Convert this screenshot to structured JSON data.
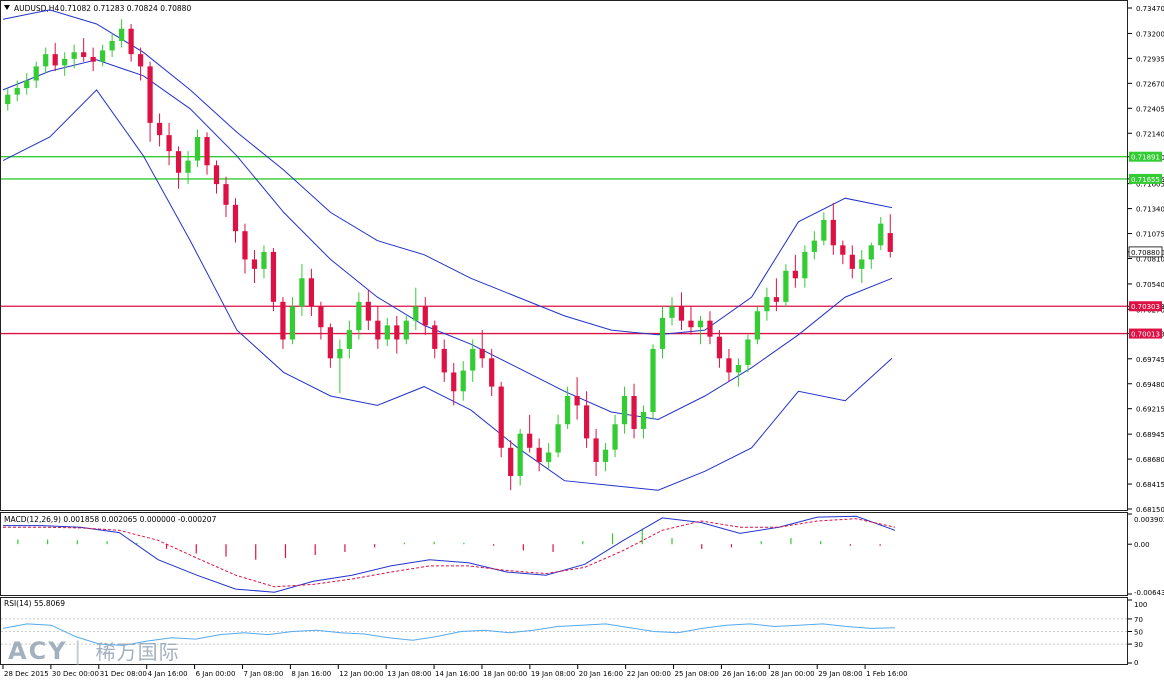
{
  "window": {
    "symbol_header": "AUDUSD,H4",
    "ohlc_header": "0.71082 0.71283 0.70824 0.70880",
    "macd_header": "MACD(12,26,9) 0.001858 0.002065 0.000000 -0.000207",
    "rsi_header": "RSI(14) 55.8069"
  },
  "watermark": {
    "brand": "ACY",
    "cn": "稀万国际",
    "separator": "|"
  },
  "colors": {
    "bull": "#33cc33",
    "bear": "#dd1144",
    "bollinger": "#2233cc",
    "support_lines": "#dd1144",
    "resistance_lines": "#33cc33",
    "macd_line": "#2233cc",
    "macd_signal": "#dd1144",
    "rsi_line": "#55aaee",
    "price_box_green": "#33cc33",
    "price_box_red": "#dd1144",
    "price_box_current": "#ffffff"
  },
  "price_axis": {
    "ticks": [
      "0.73470",
      "0.73200",
      "0.72935",
      "0.72670",
      "0.72405",
      "0.72140",
      "0.71890",
      "0.71655",
      "0.71605",
      "0.71340",
      "0.71075",
      "0.70880",
      "0.70810",
      "0.70540",
      "0.70303",
      "0.70270",
      "0.70013",
      "0.69745",
      "0.69480",
      "0.69215",
      "0.68945",
      "0.68680",
      "0.68415",
      "0.68150"
    ],
    "levels": [
      {
        "price": 0.71891,
        "label": "0.71891",
        "kind": "resistance"
      },
      {
        "price": 0.71655,
        "label": "0.71655",
        "kind": "resistance"
      },
      {
        "price": 0.70303,
        "label": "0.70303",
        "kind": "support"
      },
      {
        "price": 0.70013,
        "label": "0.70013",
        "kind": "support"
      }
    ],
    "current": {
      "price": 0.7088,
      "label": "0.70880"
    }
  },
  "macd_axis": {
    "ticks": [
      "0.003902",
      "0.00",
      "-0.006435"
    ]
  },
  "rsi_axis": {
    "ticks": [
      "100",
      "70",
      "50",
      "30",
      "0"
    ]
  },
  "time_axis": {
    "labels": [
      "28 Dec 2015",
      "30 Dec 00:00",
      "31 Dec 08:00",
      "4 Jan 16:00",
      "6 Jan 00:00",
      "7 Jan 08:00",
      "8 Jan 16:00",
      "12 Jan 00:00",
      "13 Jan 08:00",
      "14 Jan 16:00",
      "18 Jan 00:00",
      "19 Jan 08:00",
      "20 Jan 16:00",
      "22 Jan 00:00",
      "25 Jan 08:00",
      "26 Jan 16:00",
      "28 Jan 00:00",
      "29 Jan 08:00",
      "1 Feb 16:00"
    ]
  },
  "chart_data": {
    "type": "candlestick",
    "symbol": "AUDUSD",
    "timeframe": "H4",
    "price_range": [
      0.6815,
      0.7347
    ],
    "candles_ohlc": [
      [
        0.7245,
        0.7262,
        0.7238,
        0.7255
      ],
      [
        0.7255,
        0.727,
        0.7248,
        0.7262
      ],
      [
        0.7262,
        0.7278,
        0.7255,
        0.727
      ],
      [
        0.727,
        0.729,
        0.7262,
        0.7285
      ],
      [
        0.7285,
        0.7305,
        0.7278,
        0.7298
      ],
      [
        0.7298,
        0.731,
        0.728,
        0.7286
      ],
      [
        0.7286,
        0.73,
        0.7275,
        0.7293
      ],
      [
        0.7293,
        0.7308,
        0.7283,
        0.73
      ],
      [
        0.73,
        0.7315,
        0.729,
        0.7295
      ],
      [
        0.7295,
        0.7305,
        0.728,
        0.729
      ],
      [
        0.729,
        0.7308,
        0.7285,
        0.7302
      ],
      [
        0.7302,
        0.732,
        0.7295,
        0.7312
      ],
      [
        0.7312,
        0.7335,
        0.7305,
        0.7325
      ],
      [
        0.7325,
        0.733,
        0.729,
        0.7298
      ],
      [
        0.7298,
        0.7305,
        0.727,
        0.7285
      ],
      [
        0.7285,
        0.729,
        0.7205,
        0.7225
      ],
      [
        0.7225,
        0.7235,
        0.72,
        0.7212
      ],
      [
        0.7212,
        0.7225,
        0.718,
        0.7195
      ],
      [
        0.7195,
        0.72,
        0.7155,
        0.7172
      ],
      [
        0.7172,
        0.7195,
        0.716,
        0.7185
      ],
      [
        0.7185,
        0.7218,
        0.7178,
        0.721
      ],
      [
        0.721,
        0.7215,
        0.717,
        0.718
      ],
      [
        0.718,
        0.7185,
        0.715,
        0.716
      ],
      [
        0.716,
        0.7168,
        0.7125,
        0.7138
      ],
      [
        0.7138,
        0.7145,
        0.7098,
        0.711
      ],
      [
        0.711,
        0.7118,
        0.7065,
        0.708
      ],
      [
        0.708,
        0.709,
        0.7055,
        0.707
      ],
      [
        0.707,
        0.7095,
        0.706,
        0.7088
      ],
      [
        0.7088,
        0.7092,
        0.7025,
        0.7035
      ],
      [
        0.7035,
        0.704,
        0.6985,
        0.6995
      ],
      [
        0.6995,
        0.704,
        0.699,
        0.703
      ],
      [
        0.703,
        0.7075,
        0.702,
        0.706
      ],
      [
        0.706,
        0.707,
        0.702,
        0.703
      ],
      [
        0.703,
        0.7035,
        0.6995,
        0.7008
      ],
      [
        0.7008,
        0.7012,
        0.6965,
        0.6975
      ],
      [
        0.6975,
        0.6995,
        0.6938,
        0.6985
      ],
      [
        0.6985,
        0.7015,
        0.6975,
        0.7005
      ],
      [
        0.7005,
        0.7045,
        0.6995,
        0.7035
      ],
      [
        0.7035,
        0.7048,
        0.7005,
        0.7015
      ],
      [
        0.7015,
        0.703,
        0.6985,
        0.6995
      ],
      [
        0.6995,
        0.7018,
        0.6988,
        0.701
      ],
      [
        0.701,
        0.702,
        0.698,
        0.6995
      ],
      [
        0.6995,
        0.702,
        0.699,
        0.7015
      ],
      [
        0.7015,
        0.705,
        0.7005,
        0.703
      ],
      [
        0.703,
        0.704,
        0.7,
        0.701
      ],
      [
        0.701,
        0.7015,
        0.6975,
        0.6985
      ],
      [
        0.6985,
        0.6995,
        0.695,
        0.696
      ],
      [
        0.696,
        0.697,
        0.6925,
        0.694
      ],
      [
        0.694,
        0.6972,
        0.693,
        0.6962
      ],
      [
        0.6962,
        0.6995,
        0.695,
        0.6985
      ],
      [
        0.6985,
        0.7005,
        0.6965,
        0.6975
      ],
      [
        0.6975,
        0.6985,
        0.6935,
        0.6945
      ],
      [
        0.6945,
        0.695,
        0.687,
        0.688
      ],
      [
        0.688,
        0.6888,
        0.6835,
        0.685
      ],
      [
        0.685,
        0.69,
        0.684,
        0.6895
      ],
      [
        0.6895,
        0.6915,
        0.6875,
        0.688
      ],
      [
        0.688,
        0.689,
        0.6855,
        0.6865
      ],
      [
        0.6865,
        0.6885,
        0.6858,
        0.6875
      ],
      [
        0.6875,
        0.6915,
        0.687,
        0.6905
      ],
      [
        0.6905,
        0.6945,
        0.69,
        0.6935
      ],
      [
        0.6935,
        0.6955,
        0.691,
        0.6925
      ],
      [
        0.6925,
        0.694,
        0.688,
        0.689
      ],
      [
        0.689,
        0.69,
        0.685,
        0.6865
      ],
      [
        0.6865,
        0.6885,
        0.6855,
        0.6878
      ],
      [
        0.6878,
        0.6915,
        0.687,
        0.6905
      ],
      [
        0.6905,
        0.6945,
        0.6895,
        0.6935
      ],
      [
        0.6935,
        0.6948,
        0.689,
        0.69
      ],
      [
        0.69,
        0.6925,
        0.689,
        0.6918
      ],
      [
        0.6918,
        0.699,
        0.691,
        0.6985
      ],
      [
        0.6985,
        0.703,
        0.6975,
        0.7018
      ],
      [
        0.7018,
        0.704,
        0.701,
        0.703
      ],
      [
        0.703,
        0.7045,
        0.7005,
        0.7015
      ],
      [
        0.7015,
        0.703,
        0.7,
        0.7008
      ],
      [
        0.7008,
        0.702,
        0.699,
        0.7015
      ],
      [
        0.7015,
        0.7025,
        0.699,
        0.6998
      ],
      [
        0.6998,
        0.7005,
        0.6965,
        0.6975
      ],
      [
        0.6975,
        0.6985,
        0.695,
        0.696
      ],
      [
        0.696,
        0.6975,
        0.6945,
        0.6968
      ],
      [
        0.6968,
        0.7,
        0.696,
        0.6995
      ],
      [
        0.6995,
        0.703,
        0.699,
        0.7025
      ],
      [
        0.7025,
        0.705,
        0.7015,
        0.704
      ],
      [
        0.704,
        0.706,
        0.7025,
        0.7035
      ],
      [
        0.7035,
        0.7075,
        0.703,
        0.7068
      ],
      [
        0.7068,
        0.7085,
        0.705,
        0.706
      ],
      [
        0.706,
        0.7095,
        0.705,
        0.7088
      ],
      [
        0.7088,
        0.711,
        0.708,
        0.71
      ],
      [
        0.71,
        0.713,
        0.7095,
        0.7122
      ],
      [
        0.7122,
        0.714,
        0.7085,
        0.7095
      ],
      [
        0.7095,
        0.71,
        0.7075,
        0.7085
      ],
      [
        0.7085,
        0.7095,
        0.706,
        0.707
      ],
      [
        0.707,
        0.709,
        0.7055,
        0.708
      ],
      [
        0.708,
        0.7098,
        0.707,
        0.7095
      ],
      [
        0.7095,
        0.7125,
        0.709,
        0.7118
      ],
      [
        0.7108,
        0.7128,
        0.7082,
        0.7088
      ]
    ],
    "bollinger_bands": {
      "period": "unlabeled",
      "upper": [
        0.7335,
        0.7345,
        0.733,
        0.73,
        0.726,
        0.7215,
        0.7175,
        0.713,
        0.71,
        0.7085,
        0.706,
        0.704,
        0.702,
        0.7005,
        0.7,
        0.7005,
        0.704,
        0.712,
        0.7145,
        0.7135
      ],
      "middle": [
        0.726,
        0.728,
        0.7292,
        0.7275,
        0.724,
        0.719,
        0.713,
        0.708,
        0.704,
        0.701,
        0.699,
        0.6965,
        0.694,
        0.6918,
        0.691,
        0.6935,
        0.6965,
        0.7,
        0.704,
        0.706
      ],
      "lower": [
        0.7185,
        0.721,
        0.726,
        0.719,
        0.71,
        0.7005,
        0.696,
        0.6935,
        0.6925,
        0.6945,
        0.692,
        0.688,
        0.6845,
        0.684,
        0.6835,
        0.6855,
        0.688,
        0.694,
        0.693,
        0.6975
      ]
    },
    "macd": {
      "range": [
        -0.006435,
        0.003902
      ],
      "histogram_approx": [
        0.0006,
        0.0006,
        0.0005,
        0.0004,
        0.0002,
        -0.0006,
        -0.0012,
        -0.0016,
        -0.002,
        -0.0018,
        -0.0014,
        -0.001,
        -0.0004,
        0.0002,
        0.0003,
        0.0002,
        -0.0002,
        -0.0008,
        -0.001,
        0.0004,
        0.0014,
        0.002,
        0.0008,
        -0.0006,
        -0.0004,
        0.0004,
        0.0008,
        0.0004,
        -0.0002,
        -0.0002
      ],
      "macd_line_approx": [
        0.0024,
        0.0024,
        0.0022,
        0.0015,
        -0.002,
        -0.004,
        -0.0058,
        -0.0062,
        -0.0048,
        -0.004,
        -0.0028,
        -0.002,
        -0.0024,
        -0.0036,
        -0.004,
        -0.0026,
        0.0005,
        0.0034,
        0.0028,
        0.0014,
        0.0022,
        0.0035,
        0.0036,
        0.0018
      ],
      "signal_line_approx": [
        0.0022,
        0.0022,
        0.0021,
        0.0018,
        0.0005,
        -0.0018,
        -0.004,
        -0.0055,
        -0.0052,
        -0.0045,
        -0.0036,
        -0.0028,
        -0.0028,
        -0.0034,
        -0.0038,
        -0.003,
        -0.0008,
        0.0018,
        0.003,
        0.0022,
        0.0022,
        0.003,
        0.0033,
        0.0022
      ]
    },
    "rsi": {
      "period": 14,
      "value": 55.8069,
      "levels": [
        70,
        50,
        30
      ],
      "series_approx": [
        55,
        62,
        60,
        42,
        30,
        28,
        35,
        40,
        38,
        45,
        48,
        45,
        50,
        52,
        48,
        46,
        40,
        36,
        42,
        50,
        52,
        48,
        52,
        58,
        60,
        62,
        56,
        50,
        48,
        55,
        60,
        62,
        58,
        60,
        62,
        58,
        55,
        56
      ]
    }
  }
}
